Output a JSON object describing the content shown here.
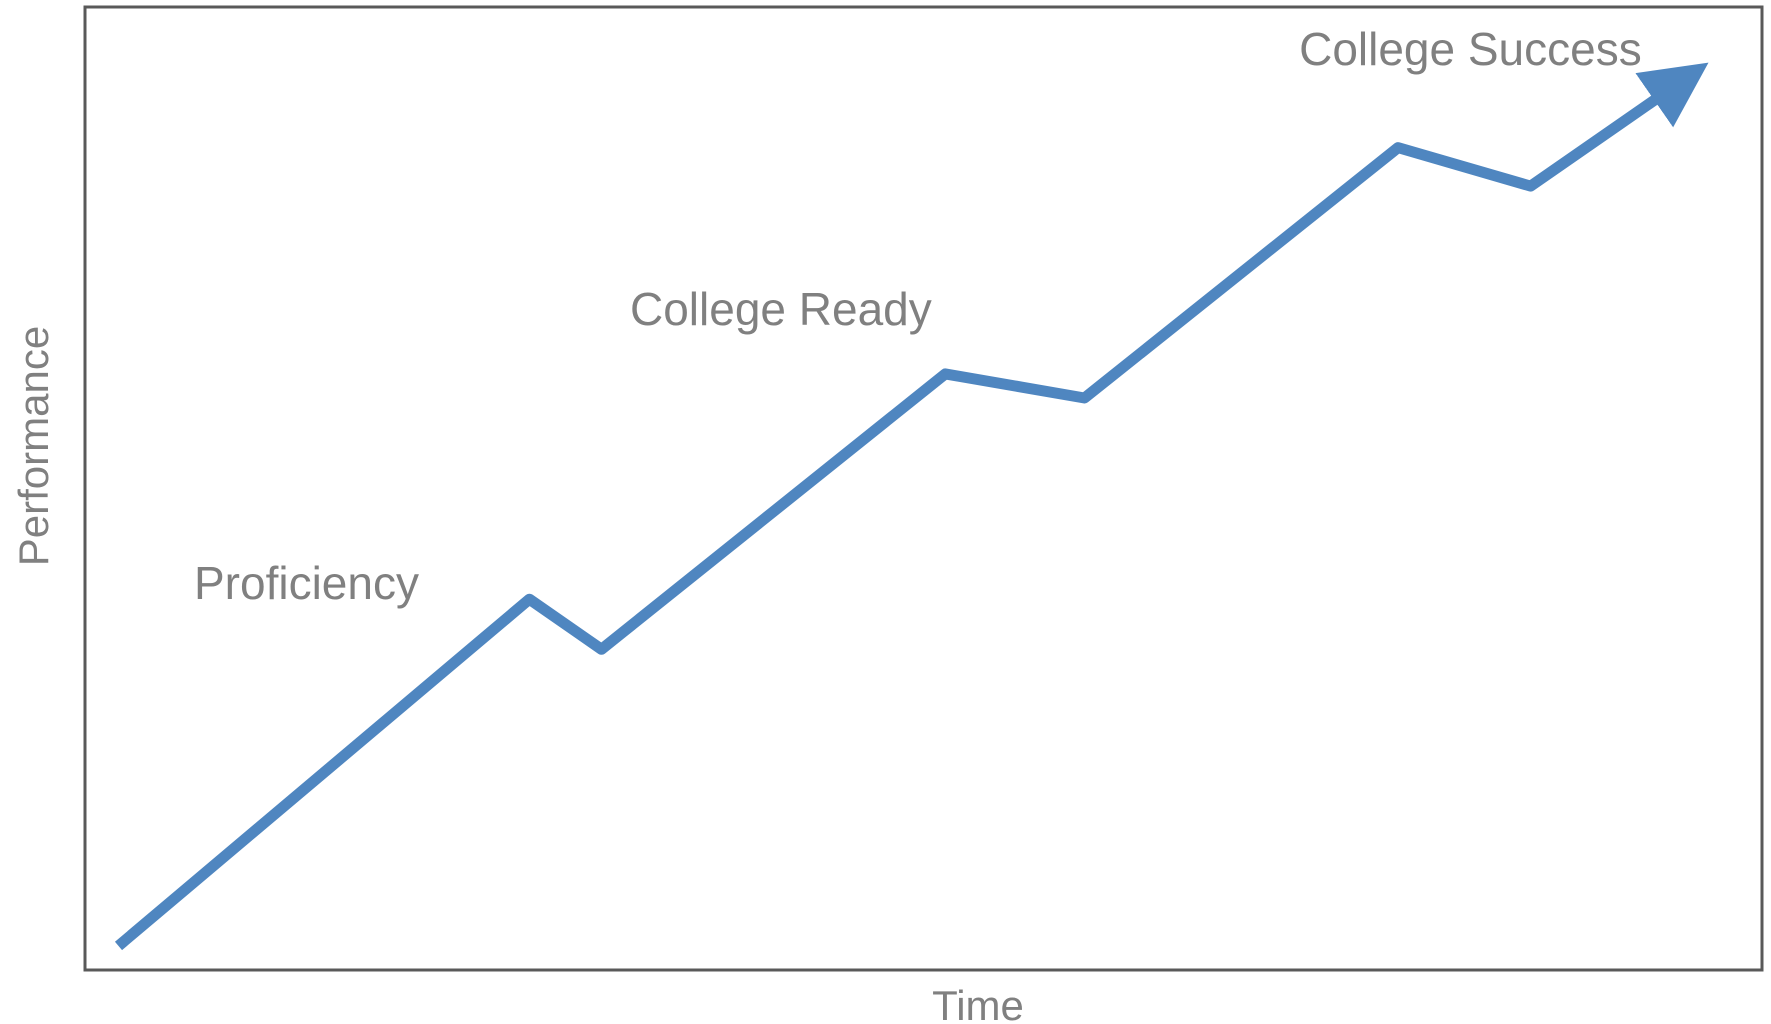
{
  "chart_data": {
    "type": "line",
    "title": "",
    "xlabel": "Time",
    "ylabel": "Performance",
    "xlim": [
      0,
      100
    ],
    "ylim": [
      0,
      100
    ],
    "grid": false,
    "series": [
      {
        "color": "#4F86C0",
        "arrow_at_end": true,
        "x": [
          2,
          26.5,
          30.8,
          51.3,
          59.6,
          78.3,
          86.2,
          95.3
        ],
        "y": [
          2.5,
          38.5,
          33.3,
          61.9,
          59.4,
          85.4,
          81.4,
          92.4
        ]
      }
    ],
    "annotations": [
      {
        "text": "Proficiency",
        "x": 6.5,
        "y": 38.5
      },
      {
        "text": "College Ready",
        "x": 32.5,
        "y": 67
      },
      {
        "text": "College Success",
        "x": 72.4,
        "y": 94
      }
    ]
  }
}
